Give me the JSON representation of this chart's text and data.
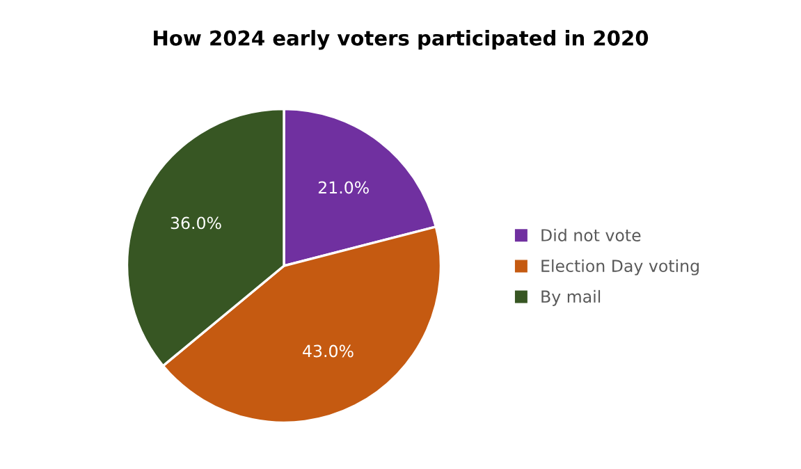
{
  "chart_data": {
    "type": "pie",
    "title": "How 2024 early voters participated in 2020",
    "categories": [
      "Did not vote",
      "Election Day voting",
      "By mail"
    ],
    "values": [
      21,
      43,
      36
    ],
    "colors": [
      "#7030a0",
      "#c55a11",
      "#375623"
    ],
    "value_labels": [
      "21.0%",
      "43.0%",
      "36.0%"
    ],
    "legend": "right"
  }
}
